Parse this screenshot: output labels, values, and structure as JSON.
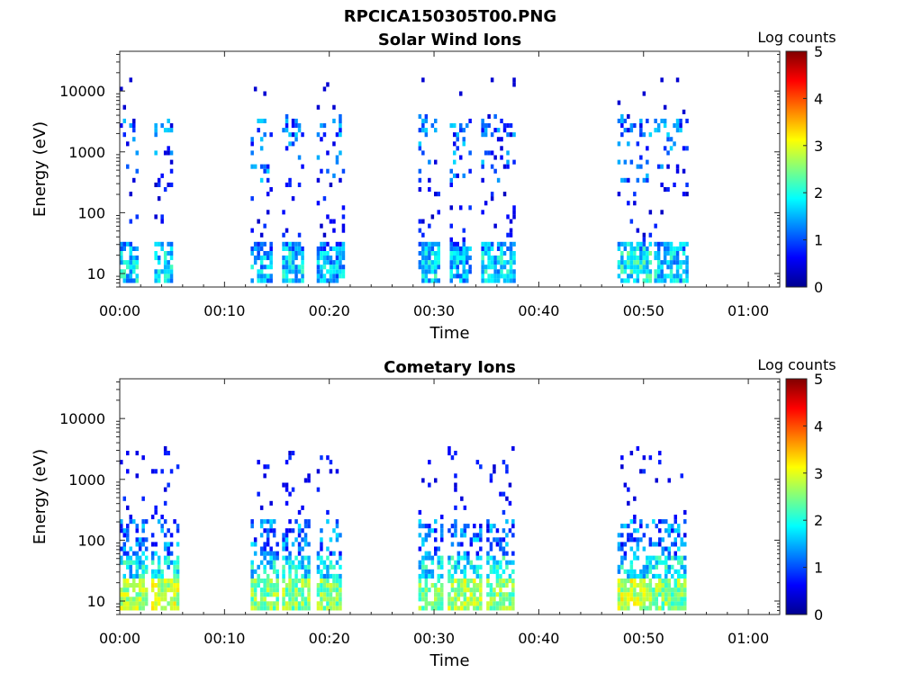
{
  "figure": {
    "suptitle": "RPCICA150305T00.PNG"
  },
  "chart_data": [
    {
      "type": "heatmap",
      "title": "Solar Wind Ions",
      "xlabel": "Time",
      "ylabel": "Energy (eV)",
      "y_scale": "log",
      "xlim_minutes": [
        0,
        63
      ],
      "ylim": [
        6,
        45000
      ],
      "x_tick_labels": [
        "00:00",
        "00:10",
        "00:20",
        "00:30",
        "00:40",
        "00:50",
        "01:00"
      ],
      "x_tick_minutes": [
        0,
        10,
        20,
        30,
        40,
        50,
        60
      ],
      "y_tick_labels": [
        "10",
        "100",
        "1000",
        "10000"
      ],
      "y_tick_values": [
        10,
        100,
        1000,
        10000
      ],
      "colorbar": {
        "label": "Log counts",
        "min": 0,
        "max": 5,
        "tick_labels": [
          "0",
          "1",
          "2",
          "3",
          "4",
          "5"
        ],
        "colormap": "jet"
      },
      "bursts": [
        {
          "start_min": 0.0,
          "end_min": 1.8,
          "value_log_counts": 2.0
        },
        {
          "start_min": 3.3,
          "end_min": 5.0,
          "value_log_counts": 2.0
        },
        {
          "start_min": 12.5,
          "end_min": 14.5,
          "value_log_counts": 1.8
        },
        {
          "start_min": 15.5,
          "end_min": 17.5,
          "value_log_counts": 2.0
        },
        {
          "start_min": 18.8,
          "end_min": 21.5,
          "value_log_counts": 1.8
        },
        {
          "start_min": 28.5,
          "end_min": 30.5,
          "value_log_counts": 2.0
        },
        {
          "start_min": 31.5,
          "end_min": 33.5,
          "value_log_counts": 1.8
        },
        {
          "start_min": 34.5,
          "end_min": 37.5,
          "value_log_counts": 2.0
        },
        {
          "start_min": 47.5,
          "end_min": 50.5,
          "value_log_counts": 2.2
        },
        {
          "start_min": 51.0,
          "end_min": 54.0,
          "value_log_counts": 2.0
        }
      ]
    },
    {
      "type": "heatmap",
      "title": "Cometary Ions",
      "xlabel": "Time",
      "ylabel": "Energy (eV)",
      "y_scale": "log",
      "xlim_minutes": [
        0,
        63
      ],
      "ylim": [
        6,
        45000
      ],
      "x_tick_labels": [
        "00:00",
        "00:10",
        "00:20",
        "00:30",
        "00:40",
        "00:50",
        "01:00"
      ],
      "x_tick_minutes": [
        0,
        10,
        20,
        30,
        40,
        50,
        60
      ],
      "y_tick_labels": [
        "10",
        "100",
        "1000",
        "10000"
      ],
      "y_tick_values": [
        10,
        100,
        1000,
        10000
      ],
      "colorbar": {
        "label": "Log counts",
        "min": 0,
        "max": 5,
        "tick_labels": [
          "0",
          "1",
          "2",
          "3",
          "4",
          "5"
        ],
        "colormap": "jet"
      },
      "bursts": [
        {
          "start_min": 0.0,
          "end_min": 2.5,
          "value_log_counts": 3.2
        },
        {
          "start_min": 3.0,
          "end_min": 5.5,
          "value_log_counts": 3.3
        },
        {
          "start_min": 12.5,
          "end_min": 15.0,
          "value_log_counts": 3.0
        },
        {
          "start_min": 15.5,
          "end_min": 18.0,
          "value_log_counts": 3.0
        },
        {
          "start_min": 18.8,
          "end_min": 21.0,
          "value_log_counts": 3.0
        },
        {
          "start_min": 28.5,
          "end_min": 30.8,
          "value_log_counts": 3.0
        },
        {
          "start_min": 31.3,
          "end_min": 34.5,
          "value_log_counts": 3.2
        },
        {
          "start_min": 35.0,
          "end_min": 37.5,
          "value_log_counts": 3.0
        },
        {
          "start_min": 47.5,
          "end_min": 50.5,
          "value_log_counts": 3.3
        },
        {
          "start_min": 50.8,
          "end_min": 53.8,
          "value_log_counts": 3.0
        }
      ]
    }
  ]
}
